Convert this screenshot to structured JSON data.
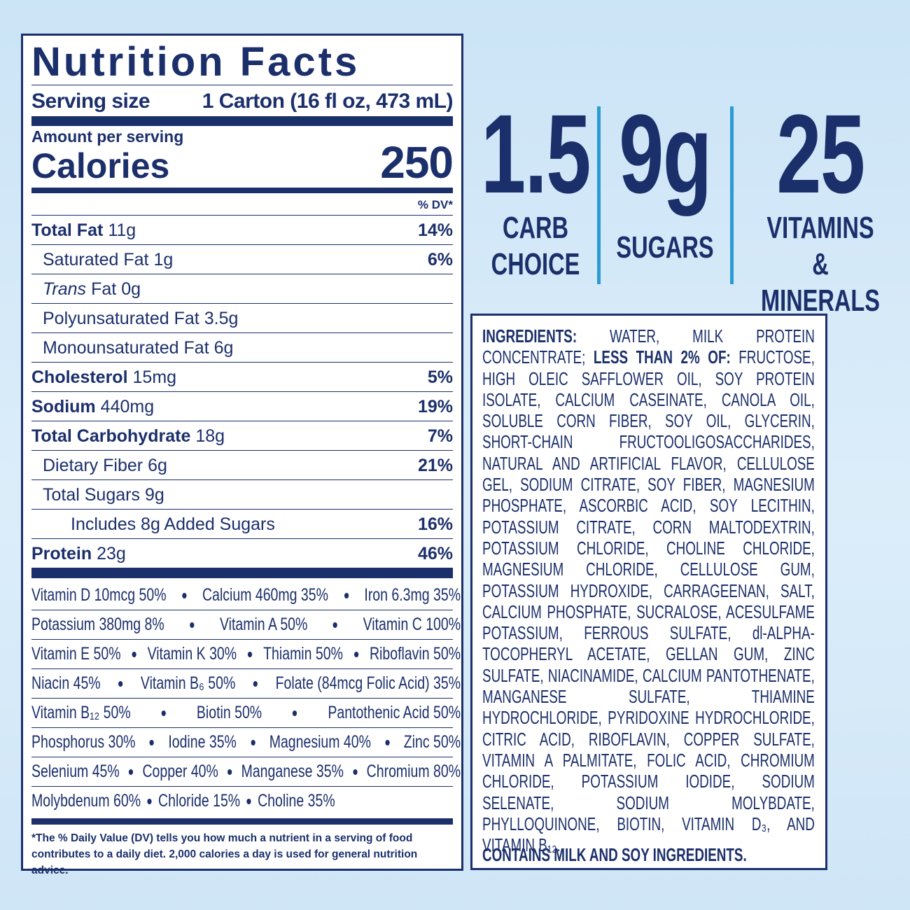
{
  "nutrition_facts": {
    "title": "Nutrition Facts",
    "serving_size_label": "Serving size",
    "serving_size": "1 Carton (16 fl oz, 473 mL)",
    "amount_per_serving": "Amount per serving",
    "calories_label": "Calories",
    "calories": 250,
    "dv_header": "% DV*",
    "rows": [
      {
        "name": "Total Fat",
        "amount": "11g",
        "dv": "14%"
      },
      {
        "name": "Saturated Fat",
        "amount": "1g",
        "dv": "6%"
      },
      {
        "name_italic": "Trans",
        "name": "Fat",
        "amount": "0g"
      },
      {
        "name": "Polyunsaturated Fat",
        "amount": "3.5g"
      },
      {
        "name": "Monounsaturated Fat",
        "amount": "6g"
      },
      {
        "name": "Cholesterol",
        "amount": "15mg",
        "dv": "5%"
      },
      {
        "name": "Sodium",
        "amount": "440mg",
        "dv": "19%"
      },
      {
        "name": "Total Carbohydrate",
        "amount": "18g",
        "dv": "7%"
      },
      {
        "name": "Dietary Fiber",
        "amount": "6g",
        "dv": "21%"
      },
      {
        "name": "Total Sugars",
        "amount": "9g"
      },
      {
        "name": "Includes 8g Added Sugars",
        "dv": "16%"
      },
      {
        "name": "Protein",
        "amount": "23g",
        "dv": "46%"
      }
    ],
    "vitamin_lines": [
      [
        "Vitamin D 10mcg 50%",
        "Calcium 460mg 35%",
        "Iron 6.3mg 35%"
      ],
      [
        "Potassium 380mg 8%",
        "Vitamin A 50%",
        "Vitamin C 100%"
      ],
      [
        "Vitamin E 50%",
        "Vitamin K 30%",
        "Thiamin 50%",
        "Riboflavin 50%"
      ],
      [
        "Niacin 45%",
        "Vitamin B₆ 50%",
        "Folate (84mcg Folic Acid) 35%"
      ],
      [
        "Vitamin B₁₂ 50%",
        "Biotin 50%",
        "Pantothenic Acid 50%"
      ],
      [
        "Phosphorus 30%",
        "Iodine 35%",
        "Magnesium 40%",
        "Zinc 50%"
      ],
      [
        "Selenium 45%",
        "Copper 40%",
        "Manganese 35%",
        "Chromium 80%"
      ],
      [
        "Molybdenum 60%",
        "Chloride 15%",
        "Choline 35%"
      ]
    ],
    "footnote": "*The % Daily Value (DV) tells you how much a nutrient in a serving of food contributes to a daily diet. 2,000 calories a day is used for general nutrition advice."
  },
  "highlights": [
    {
      "value": "1.5",
      "label_lines": [
        "CARB",
        "CHOICE"
      ]
    },
    {
      "value": "9g",
      "label_lines": [
        "SUGARS"
      ]
    },
    {
      "value": "25",
      "label_lines": [
        "VITAMINS",
        "& MINERALS"
      ]
    }
  ],
  "ingredients": {
    "label": "INGREDIENTS:",
    "text_1": "WATER, MILK PROTEIN CONCENTRATE;",
    "sub_label": "LESS THAN 2% OF:",
    "text_2": "FRUCTOSE, HIGH OLEIC SAFFLOWER OIL, SOY PROTEIN ISOLATE, CALCIUM CASEINATE, CANOLA OIL, SOLUBLE CORN FIBER, SOY OIL, GLYCERIN, SHORT-CHAIN FRUCTOOLIGOSACCHARIDES, NATURAL AND ARTIFICIAL FLAVOR, CELLULOSE GEL, SODIUM CITRATE, SOY FIBER, MAGNESIUM PHOSPHATE, ASCORBIC ACID, SOY LECITHIN, POTASSIUM CITRATE, CORN MALTODEXTRIN, POTASSIUM CHLORIDE, CHOLINE CHLORIDE, MAGNESIUM CHLORIDE, CELLULOSE GUM, POTASSIUM HYDROXIDE, CARRAGEENAN, SALT, CALCIUM PHOSPHATE, SUCRALOSE, ACESULFAME POTASSIUM, FERROUS SULFATE, dl-ALPHA-TOCOPHERYL ACETATE, GELLAN GUM, ZINC SULFATE, NIACINAMIDE, CALCIUM PANTOTHENATE, MANGANESE SULFATE, THIAMINE HYDROCHLORIDE, PYRIDOXINE HYDROCHLORIDE, CITRIC ACID, RIBOFLAVIN, COPPER SULFATE, VITAMIN A PALMITATE, FOLIC ACID, CHROMIUM CHLORIDE, POTASSIUM IODIDE, SODIUM SELENATE, SODIUM MOLYBDATE, PHYLLOQUINONE, BIOTIN, VITAMIN D₃, AND VITAMIN B₁₂.",
    "allergen": "CONTAINS MILK AND SOY INGREDIENTS."
  }
}
